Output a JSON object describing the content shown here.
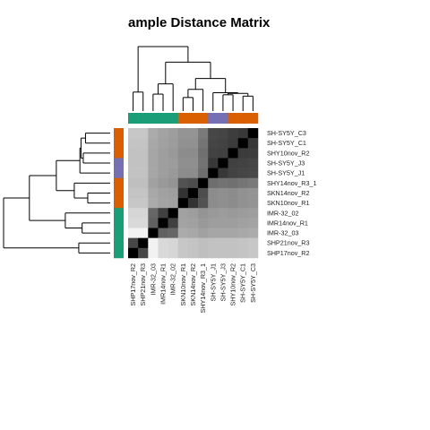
{
  "chart_data": {
    "type": "heatmap",
    "title": "ample Distance Matrix",
    "samples": [
      "SH-SY5Y_C3",
      "SH-SY5Y_C1",
      "SHY10nov_R2",
      "SH-SY5Y_J3",
      "SH-SY5Y_J1",
      "SHY14nov_R3_1",
      "SKN14nov_R2",
      "SKN10nov_R1",
      "IMR-32_02",
      "IMR14nov_R1",
      "IMR-32_03",
      "SHP21nov_R3",
      "SHP17nov_R2"
    ],
    "row_labels": [
      "SH-SY5Y_C3",
      "SH-SY5Y_C1",
      "SHY10nov_R2",
      "SH-SY5Y_J3",
      "SH-SY5Y_J1",
      "SHY14nov_R3_1",
      "SKN14nov_R2",
      "SKN10nov_R1",
      "IMR-32_02",
      "IMR14nov_R1",
      "IMR-32_03",
      "SHP21nov_R3",
      "SHP17nov_R2"
    ],
    "col_labels": [
      "SHP17nov_R2",
      "SHP21nov_R3",
      "IMR-32_03",
      "IMR14nov_R1",
      "IMR-32_02",
      "SKN10nov_R1",
      "SKN14nov_R2",
      "SHY14nov_R3_1",
      "SH-SY5Y_J1",
      "SH-SY5Y_J3",
      "SHY10nov_R2",
      "SH-SY5Y_C1",
      "SH-SY5Y_C3"
    ],
    "groups": [
      "orange",
      "orange",
      "orange",
      "purple",
      "purple",
      "orange",
      "orange",
      "orange",
      "green",
      "green",
      "green",
      "green",
      "green"
    ],
    "group_colors": {
      "orange": "#d95f02",
      "purple": "#7570b3",
      "green": "#1b9e77"
    },
    "color_scale": {
      "low": "#000000",
      "high": "#ffffff",
      "note_min": 0,
      "note_max": 1
    },
    "distance": [
      [
        0.0,
        0.22,
        0.24,
        0.27,
        0.28,
        0.48,
        0.58,
        0.58,
        0.62,
        0.64,
        0.67,
        0.78,
        0.78
      ],
      [
        0.22,
        0.0,
        0.23,
        0.26,
        0.27,
        0.46,
        0.57,
        0.57,
        0.61,
        0.63,
        0.66,
        0.77,
        0.77
      ],
      [
        0.24,
        0.23,
        0.0,
        0.25,
        0.26,
        0.44,
        0.55,
        0.55,
        0.6,
        0.62,
        0.65,
        0.76,
        0.76
      ],
      [
        0.27,
        0.26,
        0.25,
        0.0,
        0.22,
        0.45,
        0.56,
        0.56,
        0.61,
        0.62,
        0.65,
        0.76,
        0.76
      ],
      [
        0.28,
        0.27,
        0.26,
        0.22,
        0.0,
        0.43,
        0.55,
        0.55,
        0.6,
        0.62,
        0.65,
        0.76,
        0.76
      ],
      [
        0.48,
        0.46,
        0.44,
        0.45,
        0.43,
        0.0,
        0.3,
        0.32,
        0.58,
        0.6,
        0.63,
        0.75,
        0.75
      ],
      [
        0.58,
        0.57,
        0.55,
        0.56,
        0.55,
        0.3,
        0.0,
        0.2,
        0.62,
        0.63,
        0.66,
        0.77,
        0.77
      ],
      [
        0.58,
        0.57,
        0.55,
        0.56,
        0.55,
        0.32,
        0.2,
        0.0,
        0.63,
        0.64,
        0.67,
        0.78,
        0.78
      ],
      [
        0.62,
        0.61,
        0.6,
        0.61,
        0.6,
        0.58,
        0.62,
        0.63,
        0.0,
        0.25,
        0.4,
        0.84,
        0.84
      ],
      [
        0.64,
        0.63,
        0.62,
        0.62,
        0.62,
        0.6,
        0.63,
        0.64,
        0.25,
        0.0,
        0.38,
        0.85,
        0.85
      ],
      [
        0.67,
        0.66,
        0.65,
        0.65,
        0.65,
        0.63,
        0.66,
        0.67,
        0.4,
        0.38,
        0.0,
        0.95,
        0.95
      ],
      [
        0.78,
        0.77,
        0.76,
        0.76,
        0.76,
        0.75,
        0.77,
        0.78,
        0.84,
        0.85,
        0.95,
        0.0,
        0.28
      ],
      [
        0.78,
        0.77,
        0.76,
        0.76,
        0.76,
        0.75,
        0.77,
        0.78,
        0.84,
        0.85,
        0.95,
        0.28,
        0.0
      ]
    ],
    "legend": "none",
    "grid": false
  }
}
